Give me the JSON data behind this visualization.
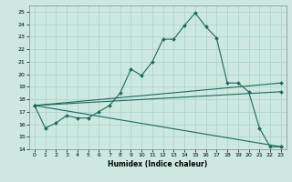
{
  "xlabel": "Humidex (Indice chaleur)",
  "xlim": [
    -0.5,
    23.5
  ],
  "ylim": [
    14,
    25.5
  ],
  "yticks": [
    14,
    15,
    16,
    17,
    18,
    19,
    20,
    21,
    22,
    23,
    24,
    25
  ],
  "xticks": [
    0,
    1,
    2,
    3,
    4,
    5,
    6,
    7,
    8,
    9,
    10,
    11,
    12,
    13,
    14,
    15,
    16,
    17,
    18,
    19,
    20,
    21,
    22,
    23
  ],
  "background_color": "#cce8e0",
  "grid_color": "#aad0c8",
  "line_color": "#1a6b5a",
  "lines": [
    {
      "x": [
        0,
        1,
        2,
        3,
        4,
        5,
        6,
        7,
        8,
        9,
        10,
        11,
        12,
        13,
        14,
        15,
        16,
        17,
        18,
        19,
        20,
        21,
        22,
        23
      ],
      "y": [
        17.5,
        15.7,
        16.1,
        16.7,
        16.5,
        16.5,
        17.0,
        17.5,
        18.5,
        20.4,
        19.9,
        21.0,
        22.8,
        22.8,
        23.9,
        24.9,
        23.8,
        22.9,
        19.3,
        19.3,
        18.6,
        15.7,
        14.2,
        14.2
      ],
      "with_markers": true
    },
    {
      "x": [
        0,
        23
      ],
      "y": [
        17.5,
        19.3
      ],
      "with_markers": true
    },
    {
      "x": [
        0,
        23
      ],
      "y": [
        17.5,
        18.6
      ],
      "with_markers": true
    },
    {
      "x": [
        0,
        23
      ],
      "y": [
        17.5,
        14.2
      ],
      "with_markers": true
    }
  ]
}
